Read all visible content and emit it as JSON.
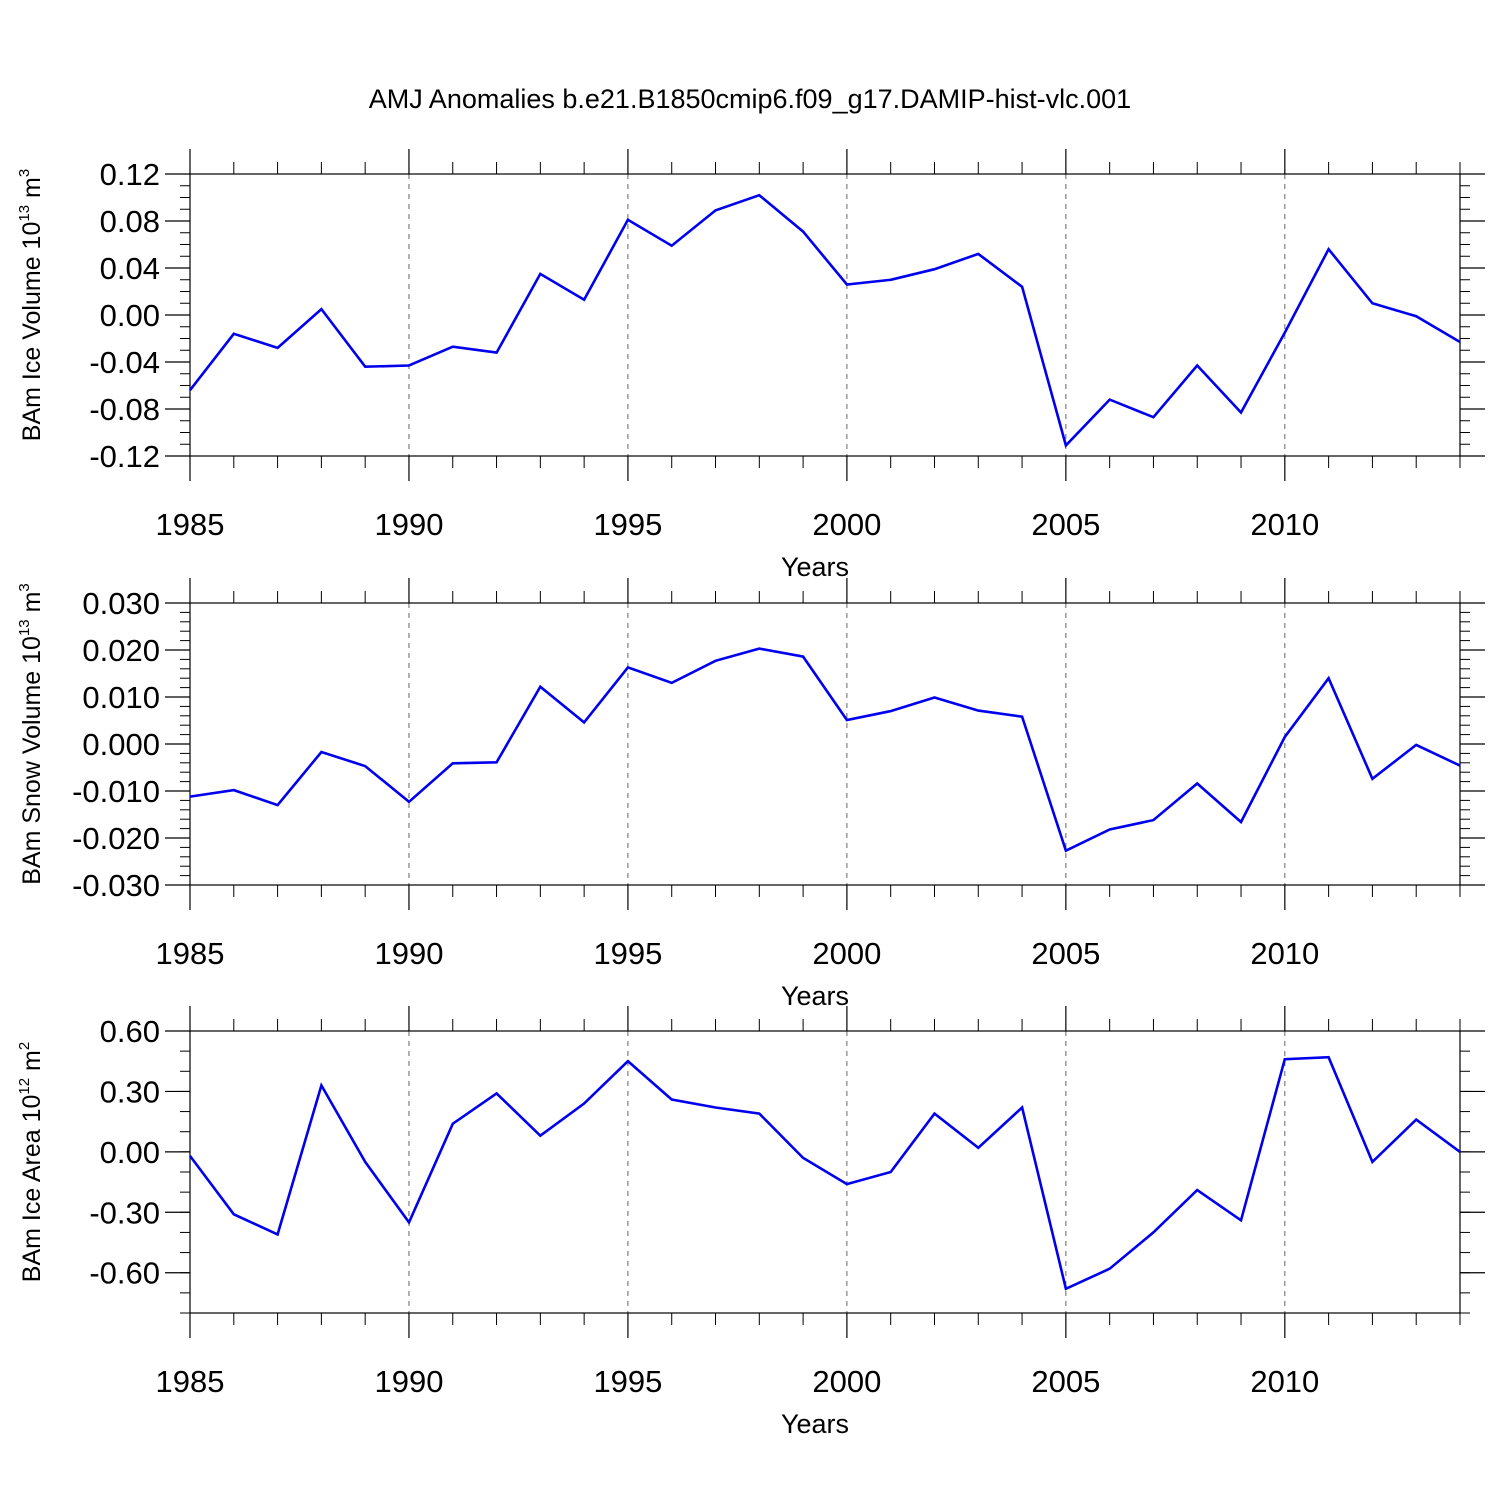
{
  "title": "AMJ Anomalies b.e21.B1850cmip6.f09_g17.DAMIP-hist-vlc.001",
  "line_color": "#0000ee",
  "chart_data": [
    {
      "type": "line",
      "ylabel": "BAm Ice Volume 10",
      "ylabel_exp": "13",
      "ylabel_unit": " m",
      "ylabel_unit_exp": "3",
      "xlabel": "Years",
      "xlim": [
        1985,
        2014
      ],
      "ylim": [
        -0.12,
        0.12
      ],
      "y_ticks": [
        -0.12,
        -0.08,
        -0.04,
        0.0,
        0.04,
        0.08,
        0.12
      ],
      "y_tick_labels": [
        "-0.12",
        "-0.08",
        "-0.04",
        "0.00",
        "0.04",
        "0.08",
        "0.12"
      ],
      "y_minor_step": 0.01,
      "x_ticks": [
        1985,
        1990,
        1995,
        2000,
        2005,
        2010
      ],
      "x_tick_labels": [
        "1985",
        "1990",
        "1995",
        "2000",
        "2005",
        "2010"
      ],
      "grid_x": [
        1990,
        1995,
        2000,
        2005,
        2010
      ],
      "x": [
        1985,
        1986,
        1987,
        1988,
        1989,
        1990,
        1991,
        1992,
        1993,
        1994,
        1995,
        1996,
        1997,
        1998,
        1999,
        2000,
        2001,
        2002,
        2003,
        2004,
        2005,
        2006,
        2007,
        2008,
        2009,
        2010,
        2011,
        2012,
        2013,
        2014
      ],
      "values": [
        -0.064,
        -0.016,
        -0.028,
        0.005,
        -0.044,
        -0.043,
        -0.027,
        -0.032,
        0.035,
        0.013,
        0.081,
        0.059,
        0.089,
        0.102,
        0.071,
        0.026,
        0.03,
        0.039,
        0.052,
        0.024,
        -0.111,
        -0.072,
        -0.087,
        -0.043,
        -0.083,
        -0.015,
        0.056,
        0.01,
        -0.001,
        -0.023
      ]
    },
    {
      "type": "line",
      "ylabel": "BAm Snow Volume 10",
      "ylabel_exp": "13",
      "ylabel_unit": " m",
      "ylabel_unit_exp": "3",
      "xlabel": "Years",
      "xlim": [
        1985,
        2014
      ],
      "ylim": [
        -0.03,
        0.03
      ],
      "y_ticks": [
        -0.03,
        -0.02,
        -0.01,
        0.0,
        0.01,
        0.02,
        0.03
      ],
      "y_tick_labels": [
        "-0.030",
        "-0.020",
        "-0.010",
        "0.000",
        "0.010",
        "0.020",
        "0.030"
      ],
      "y_minor_step": 0.002,
      "x_ticks": [
        1985,
        1990,
        1995,
        2000,
        2005,
        2010
      ],
      "x_tick_labels": [
        "1985",
        "1990",
        "1995",
        "2000",
        "2005",
        "2010"
      ],
      "grid_x": [
        1990,
        1995,
        2000,
        2005,
        2010
      ],
      "x": [
        1985,
        1986,
        1987,
        1988,
        1989,
        1990,
        1991,
        1992,
        1993,
        1994,
        1995,
        1996,
        1997,
        1998,
        1999,
        2000,
        2001,
        2002,
        2003,
        2004,
        2005,
        2006,
        2007,
        2008,
        2009,
        2010,
        2011,
        2012,
        2013,
        2014
      ],
      "values": [
        -0.0112,
        -0.0098,
        -0.013,
        -0.0017,
        -0.0047,
        -0.0123,
        -0.0041,
        -0.0039,
        0.0122,
        0.0046,
        0.0163,
        0.013,
        0.0177,
        0.0203,
        0.0186,
        0.0051,
        0.007,
        0.0099,
        0.0071,
        0.0058,
        -0.0227,
        -0.0182,
        -0.0162,
        -0.0084,
        -0.0166,
        0.0015,
        0.014,
        -0.0074,
        -0.0002,
        -0.0046
      ]
    },
    {
      "type": "line",
      "ylabel": "BAm Ice Area 10",
      "ylabel_exp": "12",
      "ylabel_unit": " m",
      "ylabel_unit_exp": "2",
      "xlabel": "Years",
      "xlim": [
        1985,
        2014
      ],
      "ylim": [
        -0.8,
        0.6
      ],
      "y_ticks": [
        -0.6,
        -0.3,
        0.0,
        0.3,
        0.6
      ],
      "y_tick_labels": [
        "-0.60",
        "-0.30",
        "0.00",
        "0.30",
        "0.60"
      ],
      "y_minor_step": 0.1,
      "x_ticks": [
        1985,
        1990,
        1995,
        2000,
        2005,
        2010
      ],
      "x_tick_labels": [
        "1985",
        "1990",
        "1995",
        "2000",
        "2005",
        "2010"
      ],
      "grid_x": [
        1990,
        1995,
        2000,
        2005,
        2010
      ],
      "x": [
        1985,
        1986,
        1987,
        1988,
        1989,
        1990,
        1991,
        1992,
        1993,
        1994,
        1995,
        1996,
        1997,
        1998,
        1999,
        2000,
        2001,
        2002,
        2003,
        2004,
        2005,
        2006,
        2007,
        2008,
        2009,
        2010,
        2011,
        2012,
        2013,
        2014
      ],
      "values": [
        -0.02,
        -0.31,
        -0.41,
        0.33,
        -0.05,
        -0.35,
        0.14,
        0.29,
        0.08,
        0.24,
        0.45,
        0.26,
        0.22,
        0.19,
        -0.03,
        -0.16,
        -0.1,
        0.19,
        0.02,
        0.22,
        -0.68,
        -0.58,
        -0.4,
        -0.19,
        -0.34,
        0.46,
        0.47,
        -0.05,
        0.16,
        0.0
      ]
    }
  ]
}
